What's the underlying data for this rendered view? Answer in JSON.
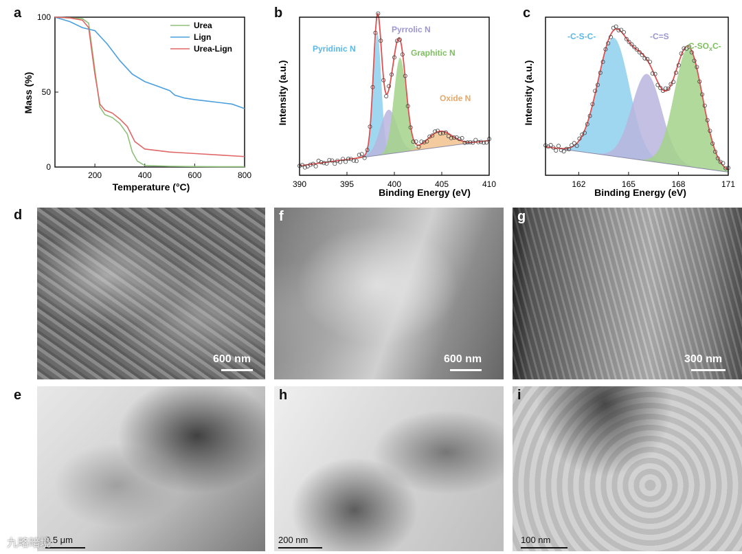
{
  "panels": {
    "a": "a",
    "b": "b",
    "c": "c",
    "d": "d",
    "e": "e",
    "f": "f",
    "g": "g",
    "h": "h",
    "i": "i"
  },
  "chart_data": [
    {
      "type": "line",
      "panel": "a",
      "xlabel": "Temperature (°C)",
      "ylabel": "Mass (%)",
      "xlim": [
        40,
        800
      ],
      "ylim": [
        0,
        100
      ],
      "xticks": [
        "200",
        "400",
        "600",
        "800"
      ],
      "yticks": [
        "0",
        "50",
        "100"
      ],
      "legend_position": "top-right",
      "series": [
        {
          "name": "Urea",
          "color": "#8fc07a",
          "x": [
            40,
            100,
            150,
            175,
            200,
            220,
            240,
            270,
            300,
            330,
            350,
            370,
            400,
            500,
            600,
            700,
            800
          ],
          "y": [
            100,
            99.5,
            99,
            96,
            65,
            40,
            35,
            33,
            29,
            22,
            10,
            4,
            1,
            0.5,
            0.3,
            0.2,
            0.2
          ]
        },
        {
          "name": "Lign",
          "color": "#4a9fde",
          "x": [
            40,
            100,
            150,
            200,
            250,
            300,
            350,
            400,
            450,
            500,
            520,
            560,
            600,
            650,
            700,
            750,
            800
          ],
          "y": [
            100,
            97,
            93,
            91,
            82,
            71,
            62,
            57,
            54,
            51,
            48,
            46,
            45,
            44,
            43,
            42,
            39
          ]
        },
        {
          "name": "Urea-Lign",
          "color": "#e06666",
          "x": [
            40,
            100,
            150,
            175,
            200,
            220,
            240,
            270,
            300,
            330,
            360,
            400,
            500,
            600,
            700,
            800
          ],
          "y": [
            100,
            99.5,
            98,
            93,
            62,
            42,
            38,
            36,
            32,
            27,
            17,
            12,
            10,
            9,
            8,
            7
          ]
        }
      ]
    },
    {
      "type": "line",
      "panel": "b",
      "xlabel": "Binding Energy (eV)",
      "ylabel": "Intensity (a.u.)",
      "xlim": [
        390,
        410
      ],
      "xticks": [
        "390",
        "395",
        "400",
        "405",
        "410"
      ],
      "annotations": [
        "Pyridinic N",
        "Pyrrolic N",
        "Graphitic N",
        "Oxide N"
      ],
      "peaks": [
        {
          "name": "Pyridinic N",
          "center": 398.2,
          "height": 0.78,
          "color": "#8ed0ee"
        },
        {
          "name": "Pyrrolic N",
          "center": 399.4,
          "height": 0.28,
          "color": "#b8b5de"
        },
        {
          "name": "Graphitic N",
          "center": 400.6,
          "height": 0.6,
          "color": "#a3d28a"
        },
        {
          "name": "Oxide N",
          "center": 404.8,
          "height": 0.1,
          "color": "#f2c28e"
        }
      ],
      "fit_color": "#e05050"
    },
    {
      "type": "line",
      "panel": "c",
      "xlabel": "Binding Energy (eV)",
      "ylabel": "Intensity (a.u.)",
      "xlim": [
        160,
        171
      ],
      "xticks": [
        "162",
        "165",
        "168",
        "171"
      ],
      "annotations": [
        "-C-S-C-",
        "-C=S",
        "-C-SO",
        "x",
        "C-"
      ],
      "peaks": [
        {
          "name": "-C-S-C-",
          "center": 164.1,
          "height": 0.75,
          "color": "#8ed0ee"
        },
        {
          "name": "-C=S",
          "center": 166.1,
          "height": 0.55,
          "color": "#b8b5de"
        },
        {
          "name": "-C-SOxC-",
          "center": 168.6,
          "height": 0.75,
          "color": "#a3d28a"
        }
      ],
      "fit_color": "#e05050"
    }
  ],
  "scale_bars": {
    "d": "600 nm",
    "f": "600 nm",
    "g": "300 nm",
    "e": "0.5 μm",
    "h": "200 nm",
    "i": "100 nm"
  },
  "watermark": "九略暗境"
}
